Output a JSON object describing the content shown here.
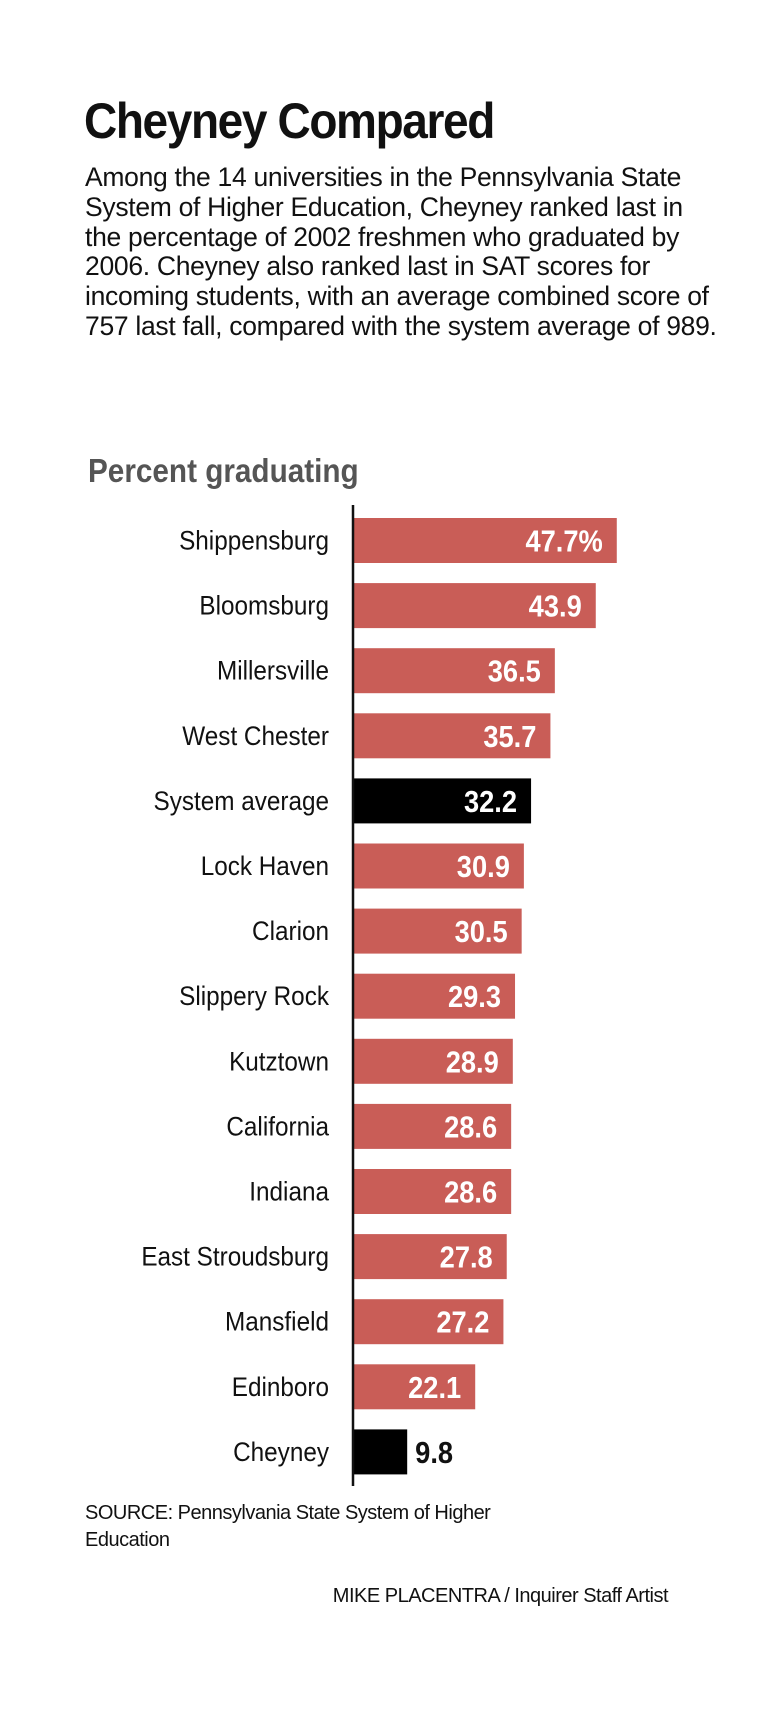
{
  "chart_data": {
    "type": "bar",
    "orientation": "horizontal",
    "title": "Cheyney Compared",
    "description": "Among the 14 universities in the Pennsylvania State System of Higher Education, Cheyney ranked last in the percentage of 2002 freshmen who graduated by 2006. Cheyney also ranked last in SAT scores for incoming students, with an average combined score of 757 last fall, compared with the system average of 989.",
    "subtitle": "Percent graduating",
    "categories": [
      "Shippensburg",
      "Bloomsburg",
      "Millersville",
      "West Chester",
      "System average",
      "Lock Haven",
      "Clarion",
      "Slippery Rock",
      "Kutztown",
      "California",
      "Indiana",
      "East Stroudsburg",
      "Mansfield",
      "Edinboro",
      "Cheyney"
    ],
    "values": [
      47.7,
      43.9,
      36.5,
      35.7,
      32.2,
      30.9,
      30.5,
      29.3,
      28.9,
      28.6,
      28.6,
      27.8,
      27.2,
      22.1,
      9.8
    ],
    "value_labels": [
      "47.7%",
      "43.9",
      "36.5",
      "35.7",
      "32.2",
      "30.9",
      "30.5",
      "29.3",
      "28.9",
      "28.6",
      "28.6",
      "27.8",
      "27.2",
      "22.1",
      "9.8"
    ],
    "highlighted": [
      "System average",
      "Cheyney"
    ],
    "xlim": [
      0,
      50
    ],
    "grid": false,
    "colors": {
      "default": "#c95d57",
      "highlight": "#000000"
    }
  },
  "source": "SOURCE: Pennsylvania State System of Higher Education",
  "credit": "MIKE PLACENTRA / Inquirer Staff Artist"
}
